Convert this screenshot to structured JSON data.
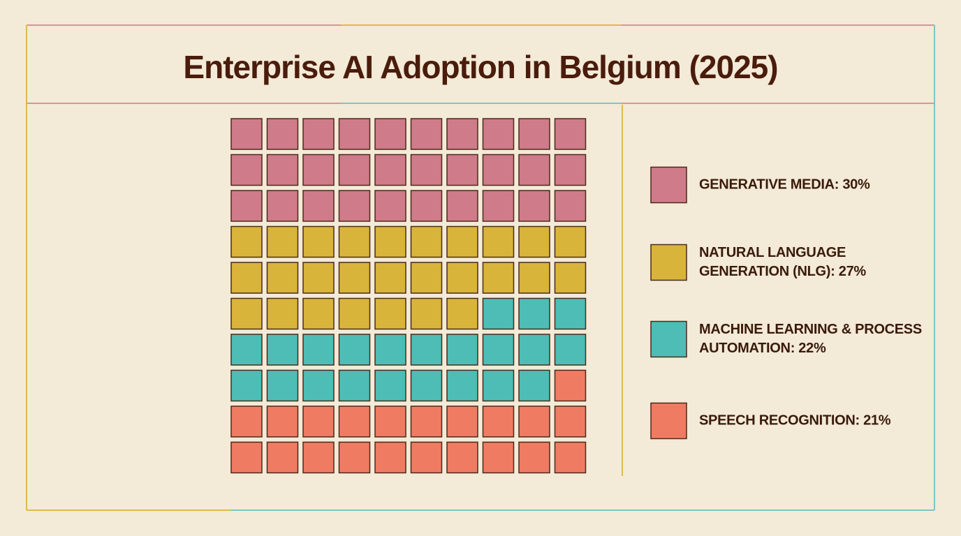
{
  "chart_data": {
    "type": "waffle",
    "title": "Enterprise AI Adoption in Belgium (2025)",
    "categories": [
      "GENERATIVE MEDIA: 30%",
      "NATURAL LANGUAGE GENERATION (NLG): 27%",
      "MACHINE LEARNING & PROCESS AUTOMATION: 22%",
      "SPEECH RECOGNITION: 21%"
    ],
    "values": [
      30,
      27,
      22,
      21
    ],
    "colors": [
      "#cf7b8a",
      "#d8b43a",
      "#4ebdb6",
      "#f07b63"
    ]
  }
}
